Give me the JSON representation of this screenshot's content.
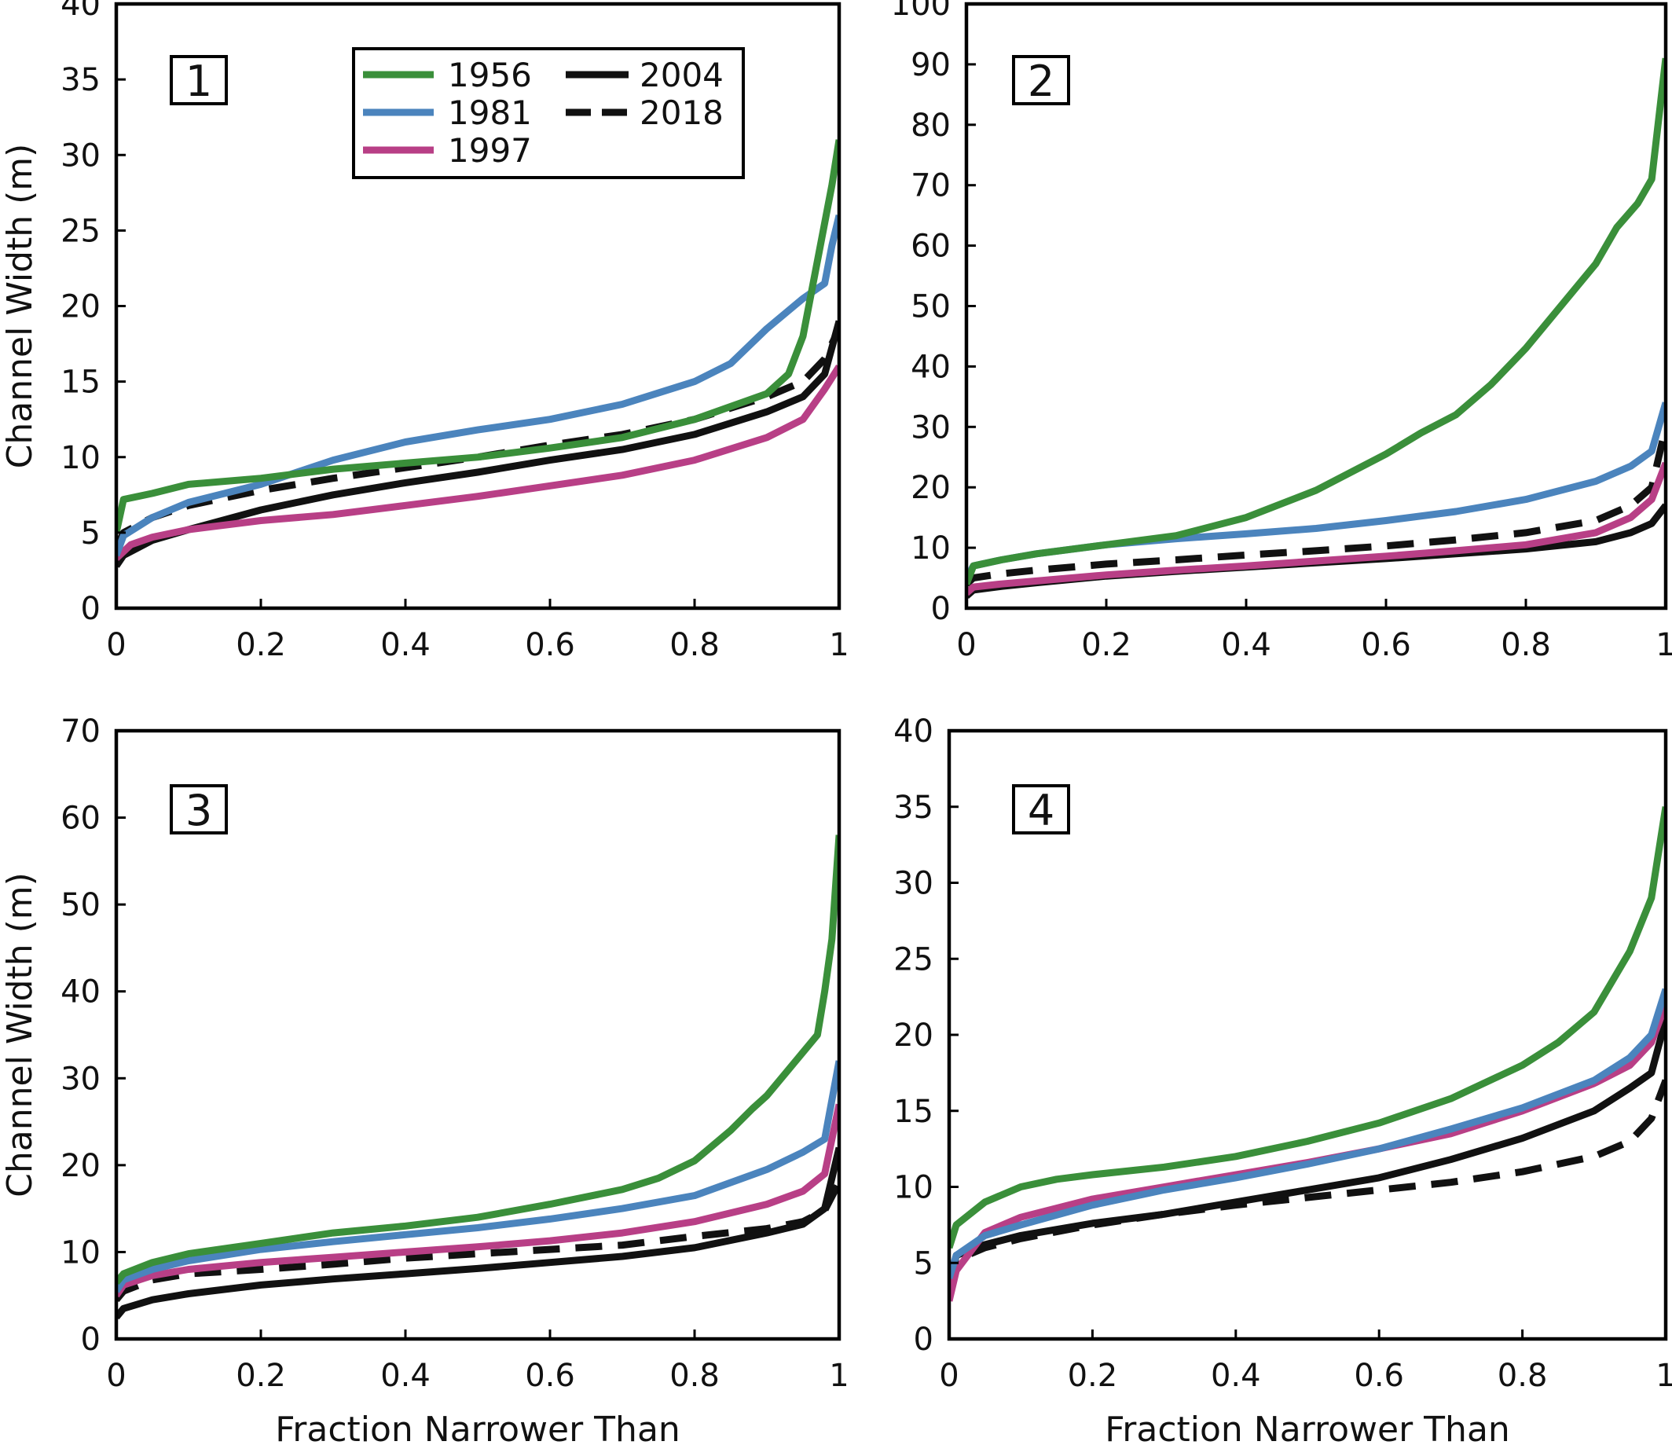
{
  "colors": {
    "1956": "#3a8f3a",
    "1981": "#4b84bd",
    "1997": "#b83f86",
    "2004": "#111111",
    "2018": "#111111"
  },
  "legend": [
    {
      "label": "1956",
      "color": "#3a8f3a",
      "dash": false
    },
    {
      "label": "1981",
      "color": "#4b84bd",
      "dash": false
    },
    {
      "label": "1997",
      "color": "#b83f86",
      "dash": false
    },
    {
      "label": "2004",
      "color": "#111111",
      "dash": false
    },
    {
      "label": "2018",
      "color": "#111111",
      "dash": true
    }
  ],
  "chart_data": [
    {
      "type": "line",
      "panel_label": "1",
      "xlabel": "",
      "ylabel": "Channel Width (m)",
      "xlim": [
        0,
        1
      ],
      "ylim": [
        0,
        40
      ],
      "x_ticks": [
        "0",
        "0.2",
        "0.4",
        "0.6",
        "0.8",
        "1"
      ],
      "y_ticks": [
        "0",
        "5",
        "10",
        "15",
        "20",
        "25",
        "30",
        "35",
        "40"
      ],
      "legend_placement": "top-center",
      "series": [
        {
          "name": "1956",
          "x": [
            0,
            0.01,
            0.05,
            0.1,
            0.2,
            0.3,
            0.4,
            0.5,
            0.6,
            0.7,
            0.8,
            0.9,
            0.93,
            0.95,
            0.97,
            0.99,
            1.0
          ],
          "y": [
            5,
            7.2,
            7.6,
            8.2,
            8.6,
            9.2,
            9.6,
            10.0,
            10.6,
            11.3,
            12.5,
            14.2,
            15.5,
            18,
            23,
            28,
            31
          ]
        },
        {
          "name": "1981",
          "x": [
            0,
            0.01,
            0.05,
            0.1,
            0.2,
            0.3,
            0.4,
            0.5,
            0.6,
            0.7,
            0.8,
            0.85,
            0.9,
            0.95,
            0.98,
            0.99,
            1.0
          ],
          "y": [
            3.5,
            4.8,
            6.0,
            7.0,
            8.2,
            9.8,
            11.0,
            11.8,
            12.5,
            13.5,
            15.0,
            16.2,
            18.5,
            20.5,
            21.5,
            24,
            26
          ]
        },
        {
          "name": "1997",
          "x": [
            0,
            0.02,
            0.05,
            0.1,
            0.2,
            0.3,
            0.4,
            0.5,
            0.6,
            0.7,
            0.8,
            0.9,
            0.95,
            0.98,
            1.0
          ],
          "y": [
            3.3,
            4.2,
            4.7,
            5.2,
            5.8,
            6.2,
            6.8,
            7.4,
            8.1,
            8.8,
            9.8,
            11.3,
            12.5,
            14.5,
            16
          ]
        },
        {
          "name": "2004",
          "x": [
            0,
            0.01,
            0.05,
            0.1,
            0.2,
            0.3,
            0.4,
            0.5,
            0.6,
            0.7,
            0.8,
            0.9,
            0.95,
            0.98,
            1.0
          ],
          "y": [
            2.8,
            3.5,
            4.5,
            5.2,
            6.5,
            7.5,
            8.3,
            9.0,
            9.8,
            10.5,
            11.5,
            13.0,
            14.0,
            15.5,
            19
          ]
        },
        {
          "name": "2018",
          "x": [
            0,
            0.01,
            0.05,
            0.1,
            0.2,
            0.3,
            0.4,
            0.5,
            0.6,
            0.7,
            0.8,
            0.9,
            0.95,
            0.98,
            1.0
          ],
          "y": [
            4.0,
            5.0,
            6.0,
            6.8,
            7.8,
            8.6,
            9.3,
            10.0,
            10.8,
            11.5,
            12.5,
            14.0,
            15.0,
            16.5,
            18.5
          ]
        }
      ]
    },
    {
      "type": "line",
      "panel_label": "2",
      "xlabel": "",
      "ylabel": "",
      "xlim": [
        0,
        1
      ],
      "ylim": [
        0,
        100
      ],
      "x_ticks": [
        "0",
        "0.2",
        "0.4",
        "0.6",
        "0.8",
        "1"
      ],
      "y_ticks": [
        "0",
        "10",
        "20",
        "30",
        "40",
        "50",
        "60",
        "70",
        "80",
        "90",
        "100"
      ],
      "series": [
        {
          "name": "1956",
          "x": [
            0,
            0.01,
            0.05,
            0.1,
            0.2,
            0.3,
            0.35,
            0.4,
            0.5,
            0.6,
            0.65,
            0.7,
            0.75,
            0.8,
            0.85,
            0.9,
            0.93,
            0.96,
            0.98,
            1.0
          ],
          "y": [
            4,
            7,
            8,
            9,
            10.5,
            12,
            13.5,
            15,
            19.5,
            25.5,
            29,
            32,
            37,
            43,
            50,
            57,
            63,
            67,
            71,
            91
          ]
        },
        {
          "name": "1981",
          "x": [
            0,
            0.01,
            0.05,
            0.1,
            0.2,
            0.3,
            0.4,
            0.5,
            0.6,
            0.7,
            0.8,
            0.9,
            0.95,
            0.98,
            1.0
          ],
          "y": [
            5,
            7,
            8,
            9,
            10.5,
            11.5,
            12.3,
            13.2,
            14.5,
            16,
            18,
            21,
            23.5,
            26,
            34
          ]
        },
        {
          "name": "1997",
          "x": [
            0,
            0.01,
            0.05,
            0.1,
            0.2,
            0.3,
            0.4,
            0.5,
            0.6,
            0.7,
            0.8,
            0.9,
            0.95,
            0.98,
            1.0
          ],
          "y": [
            2.5,
            3.5,
            4,
            4.5,
            5.5,
            6.3,
            7,
            7.8,
            8.6,
            9.5,
            10.5,
            12.5,
            15,
            18,
            24
          ]
        },
        {
          "name": "2004",
          "x": [
            0,
            0.01,
            0.05,
            0.1,
            0.2,
            0.3,
            0.4,
            0.5,
            0.6,
            0.7,
            0.8,
            0.9,
            0.95,
            0.98,
            1.0
          ],
          "y": [
            2,
            3,
            3.6,
            4.2,
            5.3,
            6.1,
            6.8,
            7.5,
            8.2,
            9,
            9.8,
            11,
            12.5,
            14,
            17
          ]
        },
        {
          "name": "2018",
          "x": [
            0,
            0.01,
            0.05,
            0.1,
            0.2,
            0.3,
            0.4,
            0.5,
            0.6,
            0.7,
            0.8,
            0.9,
            0.95,
            0.98,
            1.0
          ],
          "y": [
            4,
            5,
            5.7,
            6.3,
            7.3,
            8,
            8.8,
            9.5,
            10.3,
            11.3,
            12.5,
            14.5,
            17,
            20,
            30
          ]
        }
      ]
    },
    {
      "type": "line",
      "panel_label": "3",
      "xlabel": "Fraction Narrower Than",
      "ylabel": "Channel Width (m)",
      "xlim": [
        0,
        1
      ],
      "ylim": [
        0,
        70
      ],
      "x_ticks": [
        "0",
        "0.2",
        "0.4",
        "0.6",
        "0.8",
        "1"
      ],
      "y_ticks": [
        "0",
        "10",
        "20",
        "30",
        "40",
        "50",
        "60",
        "70"
      ],
      "series": [
        {
          "name": "1956",
          "x": [
            0,
            0.01,
            0.05,
            0.1,
            0.2,
            0.3,
            0.4,
            0.5,
            0.6,
            0.7,
            0.75,
            0.8,
            0.85,
            0.88,
            0.9,
            0.93,
            0.95,
            0.97,
            0.98,
            0.99,
            1.0
          ],
          "y": [
            6.5,
            7.5,
            8.8,
            9.8,
            11,
            12.2,
            13,
            14,
            15.5,
            17.2,
            18.5,
            20.5,
            24,
            26.5,
            28,
            31,
            33,
            35,
            40,
            46,
            58
          ]
        },
        {
          "name": "1981",
          "x": [
            0,
            0.01,
            0.05,
            0.1,
            0.2,
            0.3,
            0.4,
            0.5,
            0.6,
            0.7,
            0.8,
            0.9,
            0.95,
            0.98,
            1.0
          ],
          "y": [
            5.5,
            6.8,
            8.0,
            9.0,
            10.3,
            11.2,
            12.0,
            12.8,
            13.8,
            15.0,
            16.5,
            19.5,
            21.5,
            23,
            32
          ]
        },
        {
          "name": "1997",
          "x": [
            0,
            0.01,
            0.05,
            0.1,
            0.2,
            0.3,
            0.4,
            0.5,
            0.6,
            0.7,
            0.8,
            0.9,
            0.95,
            0.98,
            1.0
          ],
          "y": [
            5.0,
            6.2,
            7.3,
            8.0,
            8.8,
            9.4,
            10.0,
            10.6,
            11.3,
            12.2,
            13.5,
            15.5,
            17,
            19,
            27
          ]
        },
        {
          "name": "2004",
          "x": [
            0,
            0.01,
            0.05,
            0.1,
            0.2,
            0.3,
            0.4,
            0.5,
            0.6,
            0.7,
            0.8,
            0.9,
            0.95,
            0.98,
            1.0
          ],
          "y": [
            2.5,
            3.5,
            4.5,
            5.2,
            6.2,
            6.9,
            7.5,
            8.1,
            8.8,
            9.5,
            10.5,
            12.2,
            13.2,
            15,
            22
          ]
        },
        {
          "name": "2018",
          "x": [
            0,
            0.01,
            0.05,
            0.1,
            0.2,
            0.3,
            0.4,
            0.5,
            0.6,
            0.7,
            0.8,
            0.9,
            0.95,
            0.98,
            1.0
          ],
          "y": [
            4.5,
            5.5,
            6.8,
            7.5,
            8.0,
            8.6,
            9.3,
            9.8,
            10.3,
            10.8,
            11.8,
            12.7,
            13.5,
            14.8,
            18
          ]
        }
      ]
    },
    {
      "type": "line",
      "panel_label": "4",
      "xlabel": "Fraction Narrower Than",
      "ylabel": "",
      "xlim": [
        0,
        1
      ],
      "ylim": [
        0,
        40
      ],
      "x_ticks": [
        "0",
        "0.2",
        "0.4",
        "0.6",
        "0.8",
        "1"
      ],
      "y_ticks": [
        "0",
        "5",
        "10",
        "15",
        "20",
        "25",
        "30",
        "35",
        "40"
      ],
      "series": [
        {
          "name": "1956",
          "x": [
            0,
            0.01,
            0.05,
            0.1,
            0.15,
            0.2,
            0.3,
            0.4,
            0.5,
            0.6,
            0.7,
            0.8,
            0.85,
            0.9,
            0.95,
            0.98,
            1.0
          ],
          "y": [
            6,
            7.5,
            9.0,
            10.0,
            10.5,
            10.8,
            11.3,
            12.0,
            13.0,
            14.2,
            15.8,
            18.0,
            19.5,
            21.5,
            25.5,
            29,
            35
          ]
        },
        {
          "name": "1981",
          "x": [
            0,
            0.01,
            0.05,
            0.1,
            0.2,
            0.3,
            0.4,
            0.5,
            0.6,
            0.7,
            0.8,
            0.9,
            0.95,
            0.98,
            1.0
          ],
          "y": [
            4,
            5.5,
            6.8,
            7.5,
            8.8,
            9.8,
            10.6,
            11.5,
            12.5,
            13.8,
            15.2,
            17.0,
            18.5,
            20,
            23
          ]
        },
        {
          "name": "1997",
          "x": [
            0,
            0.01,
            0.05,
            0.1,
            0.2,
            0.3,
            0.4,
            0.5,
            0.6,
            0.7,
            0.8,
            0.9,
            0.95,
            0.98,
            1.0
          ],
          "y": [
            2.5,
            4.5,
            7.0,
            8.0,
            9.2,
            10.0,
            10.8,
            11.6,
            12.5,
            13.5,
            15.0,
            16.8,
            18.0,
            19.5,
            22
          ]
        },
        {
          "name": "2004",
          "x": [
            0,
            0.01,
            0.05,
            0.1,
            0.2,
            0.3,
            0.4,
            0.5,
            0.6,
            0.7,
            0.8,
            0.9,
            0.95,
            0.98,
            1.0
          ],
          "y": [
            3.5,
            5.5,
            6.2,
            6.8,
            7.6,
            8.2,
            9.0,
            9.8,
            10.6,
            11.8,
            13.2,
            15.0,
            16.5,
            17.5,
            21
          ]
        },
        {
          "name": "2018",
          "x": [
            0,
            0.01,
            0.05,
            0.1,
            0.2,
            0.3,
            0.4,
            0.5,
            0.6,
            0.7,
            0.8,
            0.9,
            0.95,
            0.98,
            1.0
          ],
          "y": [
            3.5,
            5.2,
            6.0,
            6.6,
            7.5,
            8.2,
            8.8,
            9.3,
            9.8,
            10.3,
            11.0,
            12.0,
            13.0,
            14.5,
            17
          ]
        }
      ]
    }
  ]
}
